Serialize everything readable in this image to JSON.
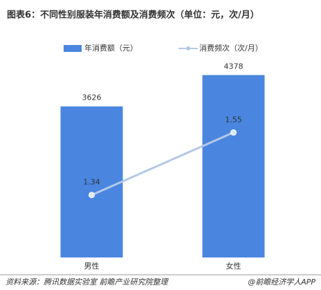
{
  "chart_data": {
    "type": "bar_line",
    "title": "图表6：不同性别服装年消费额及消费频次（单位：元，次/月）",
    "categories": [
      "男性",
      "女性"
    ],
    "series": [
      {
        "name": "年消费额（元）",
        "color": "#4a86e0",
        "type": "bar",
        "values": [
          3626,
          4378
        ]
      },
      {
        "name": "消费频次（次/月）",
        "color": "#b4c8e8",
        "type": "line",
        "axis": "y2",
        "values": [
          1.34,
          1.55
        ]
      }
    ],
    "ylim": [
      0,
      5000
    ],
    "y2lim": [
      1.13,
      1.83
    ],
    "legend": "top",
    "source": "资料来源：腾讯数据实验室  前瞻产业研究院整理",
    "brand": "@前瞻经济学人APP"
  }
}
